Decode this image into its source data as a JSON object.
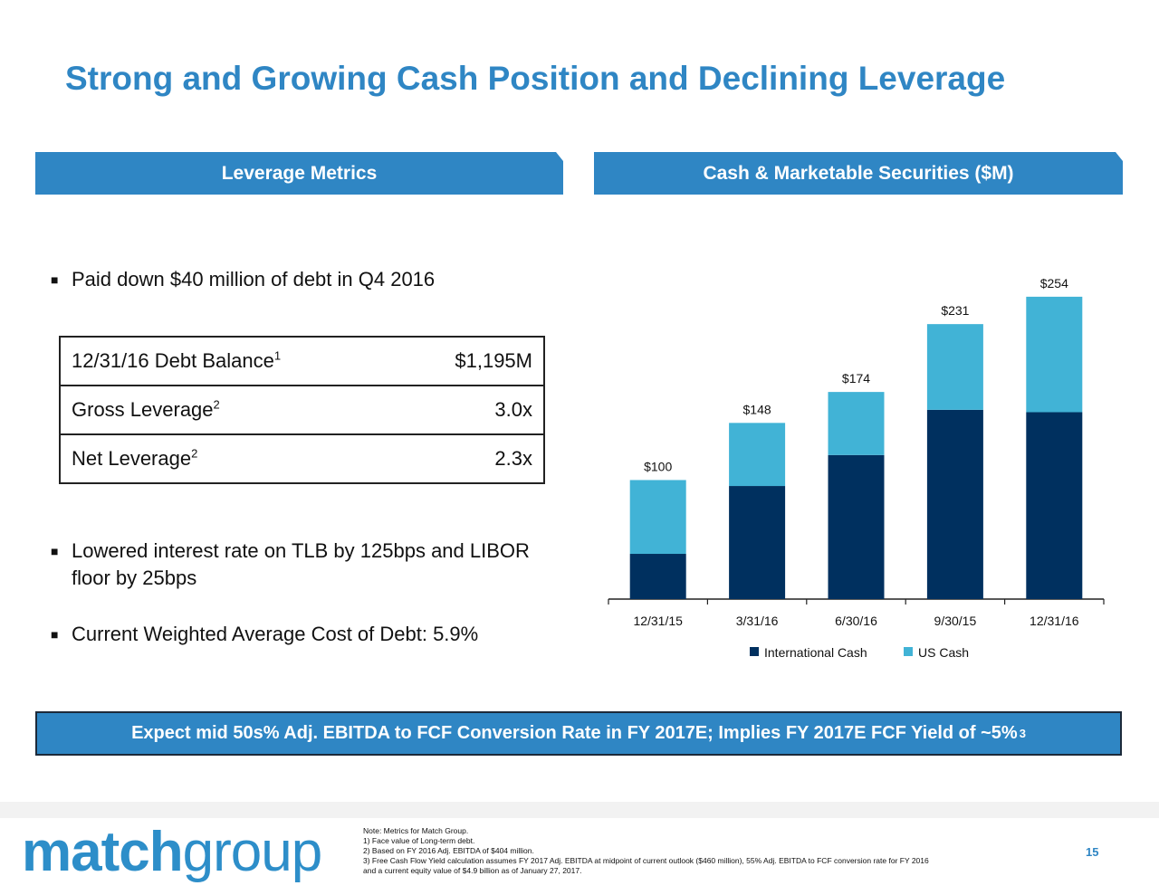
{
  "title": "Strong and Growing Cash Position and Declining Leverage",
  "left_panel": {
    "header": "Leverage Metrics",
    "bullet1": "Paid down $40 million of debt in Q4 2016",
    "table": [
      {
        "label": "12/31/16 Debt Balance",
        "sup": "1",
        "value": "$1,195M"
      },
      {
        "label": "Gross Leverage",
        "sup": "2",
        "value": "3.0x"
      },
      {
        "label": "Net Leverage",
        "sup": "2",
        "value": "2.3x"
      }
    ],
    "bullet2_line1": "Lowered interest rate on TLB by 125bps and LIBOR",
    "bullet2_line2": "floor by 25bps",
    "bullet3": "Current Weighted Average Cost of Debt: 5.9%"
  },
  "right_panel": {
    "header": "Cash & Marketable Securities ($M)"
  },
  "chart_data": {
    "type": "bar",
    "stacked": true,
    "categories": [
      "12/31/15",
      "3/31/16",
      "6/30/16",
      "9/30/15",
      "12/31/16"
    ],
    "series": [
      {
        "name": "International Cash",
        "values": [
          38,
          95,
          121,
          159,
          157
        ],
        "color": "#00305f"
      },
      {
        "name": "US Cash",
        "values": [
          62,
          53,
          53,
          72,
          97
        ],
        "color": "#41b3d6"
      }
    ],
    "totals": [
      100,
      148,
      174,
      231,
      254
    ],
    "total_labels": [
      "$100",
      "$148",
      "$174",
      "$231",
      "$254"
    ],
    "ylim": [
      0,
      260
    ],
    "legend_position": "bottom",
    "grid": false
  },
  "banner": {
    "text": "Expect mid 50s% Adj. EBITDA to FCF Conversion Rate in FY 2017E; Implies FY 2017E FCF Yield of ~5%",
    "sup": "3"
  },
  "footer": {
    "logo_bold": "match",
    "logo_light": "group",
    "notes": [
      "Note: Metrics for Match Group.",
      "1) Face value of Long-term debt.",
      "2) Based on FY 2016 Adj. EBITDA of $404 million.",
      "3) Free Cash Flow Yield calculation assumes FY 2017 Adj. EBITDA at midpoint of current outlook ($460 million), 55% Adj. EBITDA to FCF conversion rate for FY 2016",
      "and a current equity value of $4.9 billion as of January 27, 2017."
    ],
    "page_number": "15"
  }
}
